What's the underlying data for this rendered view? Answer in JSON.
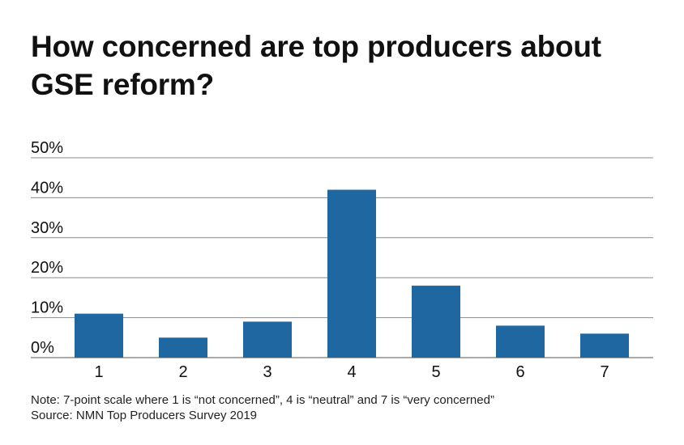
{
  "title": "How concerned are top producers about GSE reform?",
  "note": "Note: 7-point scale where 1 is “not concerned”, 4 is “neutral” and 7 is “very concerned”",
  "source": "Source: NMN Top Producers Survey 2019",
  "colors": {
    "bar": "#1f67a1",
    "grid": "#8a8a8a",
    "text": "#111111"
  },
  "chart_data": {
    "type": "bar",
    "categories": [
      "1",
      "2",
      "3",
      "4",
      "5",
      "6",
      "7"
    ],
    "values": [
      11,
      5,
      9,
      42,
      18,
      8,
      6
    ],
    "ylim": [
      0,
      50
    ],
    "yticks": [
      0,
      10,
      20,
      30,
      40,
      50
    ],
    "ytick_labels": [
      "0%",
      "10%",
      "20%",
      "30%",
      "40%",
      "50%"
    ],
    "grid": true,
    "legend": "none"
  }
}
